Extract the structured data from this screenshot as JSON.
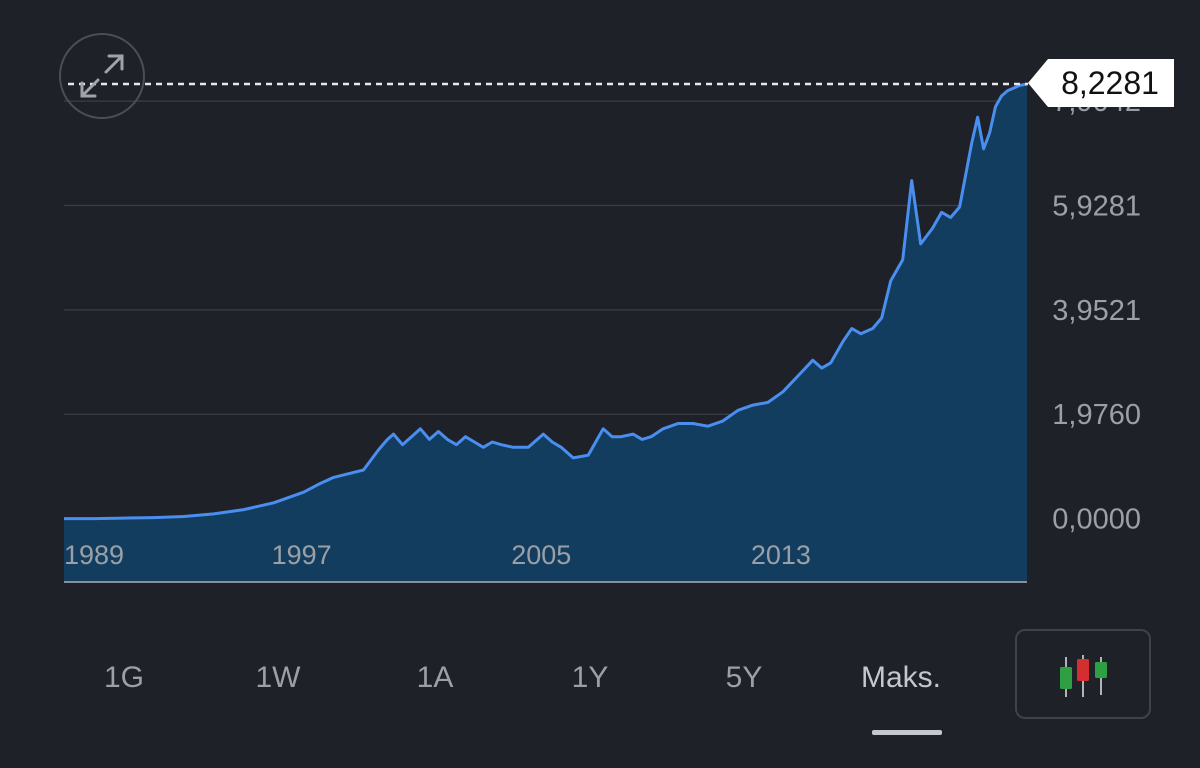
{
  "chart_data": {
    "type": "area",
    "current_value": "8,2281",
    "y_ticks": [
      "0,0000",
      "1,9760",
      "3,9521",
      "5,9281",
      "7,9042"
    ],
    "y_tick_values": [
      0,
      1.976,
      3.9521,
      5.9281,
      7.9042
    ],
    "ylim": [
      -1.2,
      8.2281
    ],
    "x_ticks": [
      "1989",
      "1997",
      "2005",
      "2013"
    ],
    "x_tick_values": [
      1989,
      1997,
      2005,
      2013
    ],
    "xlim": [
      1989,
      2021.15
    ],
    "grid": true,
    "series": [
      {
        "x": [
          1989,
          1990,
          1991,
          1992,
          1993,
          1994,
          1995,
          1996,
          1997,
          1997.5,
          1998,
          1998.5,
          1999,
          1999.5,
          1999.8,
          2000,
          2000.3,
          2000.6,
          2000.9,
          2001.2,
          2001.5,
          2001.8,
          2002.1,
          2002.4,
          2002.7,
          2003,
          2003.3,
          2003.6,
          2004,
          2004.5,
          2005,
          2005.3,
          2005.6,
          2006,
          2006.5,
          2007,
          2007.3,
          2007.6,
          2008,
          2008.3,
          2008.6,
          2009,
          2009.5,
          2010,
          2010.5,
          2011,
          2011.5,
          2012,
          2012.5,
          2013,
          2013.5,
          2014,
          2014.3,
          2014.6,
          2015,
          2015.3,
          2015.6,
          2016,
          2016.3,
          2016.6,
          2017,
          2017.3,
          2017.6,
          2018,
          2018.3,
          2018.6,
          2018.9,
          2019.1,
          2019.3,
          2019.5,
          2019.7,
          2019.9,
          2020.1,
          2020.3,
          2020.5,
          2020.7,
          2020.9,
          2021.15
        ],
        "values": [
          0,
          0,
          0.01,
          0.02,
          0.04,
          0.09,
          0.17,
          0.3,
          0.5,
          0.65,
          0.78,
          0.85,
          0.92,
          1.3,
          1.5,
          1.6,
          1.4,
          1.55,
          1.7,
          1.5,
          1.65,
          1.5,
          1.4,
          1.55,
          1.45,
          1.35,
          1.45,
          1.4,
          1.35,
          1.35,
          1.6,
          1.45,
          1.35,
          1.15,
          1.2,
          1.7,
          1.55,
          1.55,
          1.6,
          1.5,
          1.55,
          1.7,
          1.8,
          1.8,
          1.75,
          1.85,
          2.05,
          2.15,
          2.2,
          2.4,
          2.7,
          3.0,
          2.85,
          2.95,
          3.35,
          3.6,
          3.5,
          3.6,
          3.8,
          4.5,
          4.9,
          6.4,
          5.2,
          5.5,
          5.8,
          5.7,
          5.9,
          6.5,
          7.1,
          7.6,
          7.0,
          7.3,
          7.8,
          8.0,
          8.1,
          8.15,
          8.2,
          8.2281
        ]
      }
    ]
  },
  "colors": {
    "line": "#4a8ef0",
    "fill": "#133d5e",
    "grid": "#3a3e46",
    "label": "#9aa0a6"
  },
  "controls": {
    "expand_icon": "expand-icon",
    "range_tabs": [
      "1G",
      "1W",
      "1A",
      "1Y",
      "5Y",
      "Maks."
    ],
    "active_tab": "Maks.",
    "chart_type_icon": "candlestick-icon"
  }
}
